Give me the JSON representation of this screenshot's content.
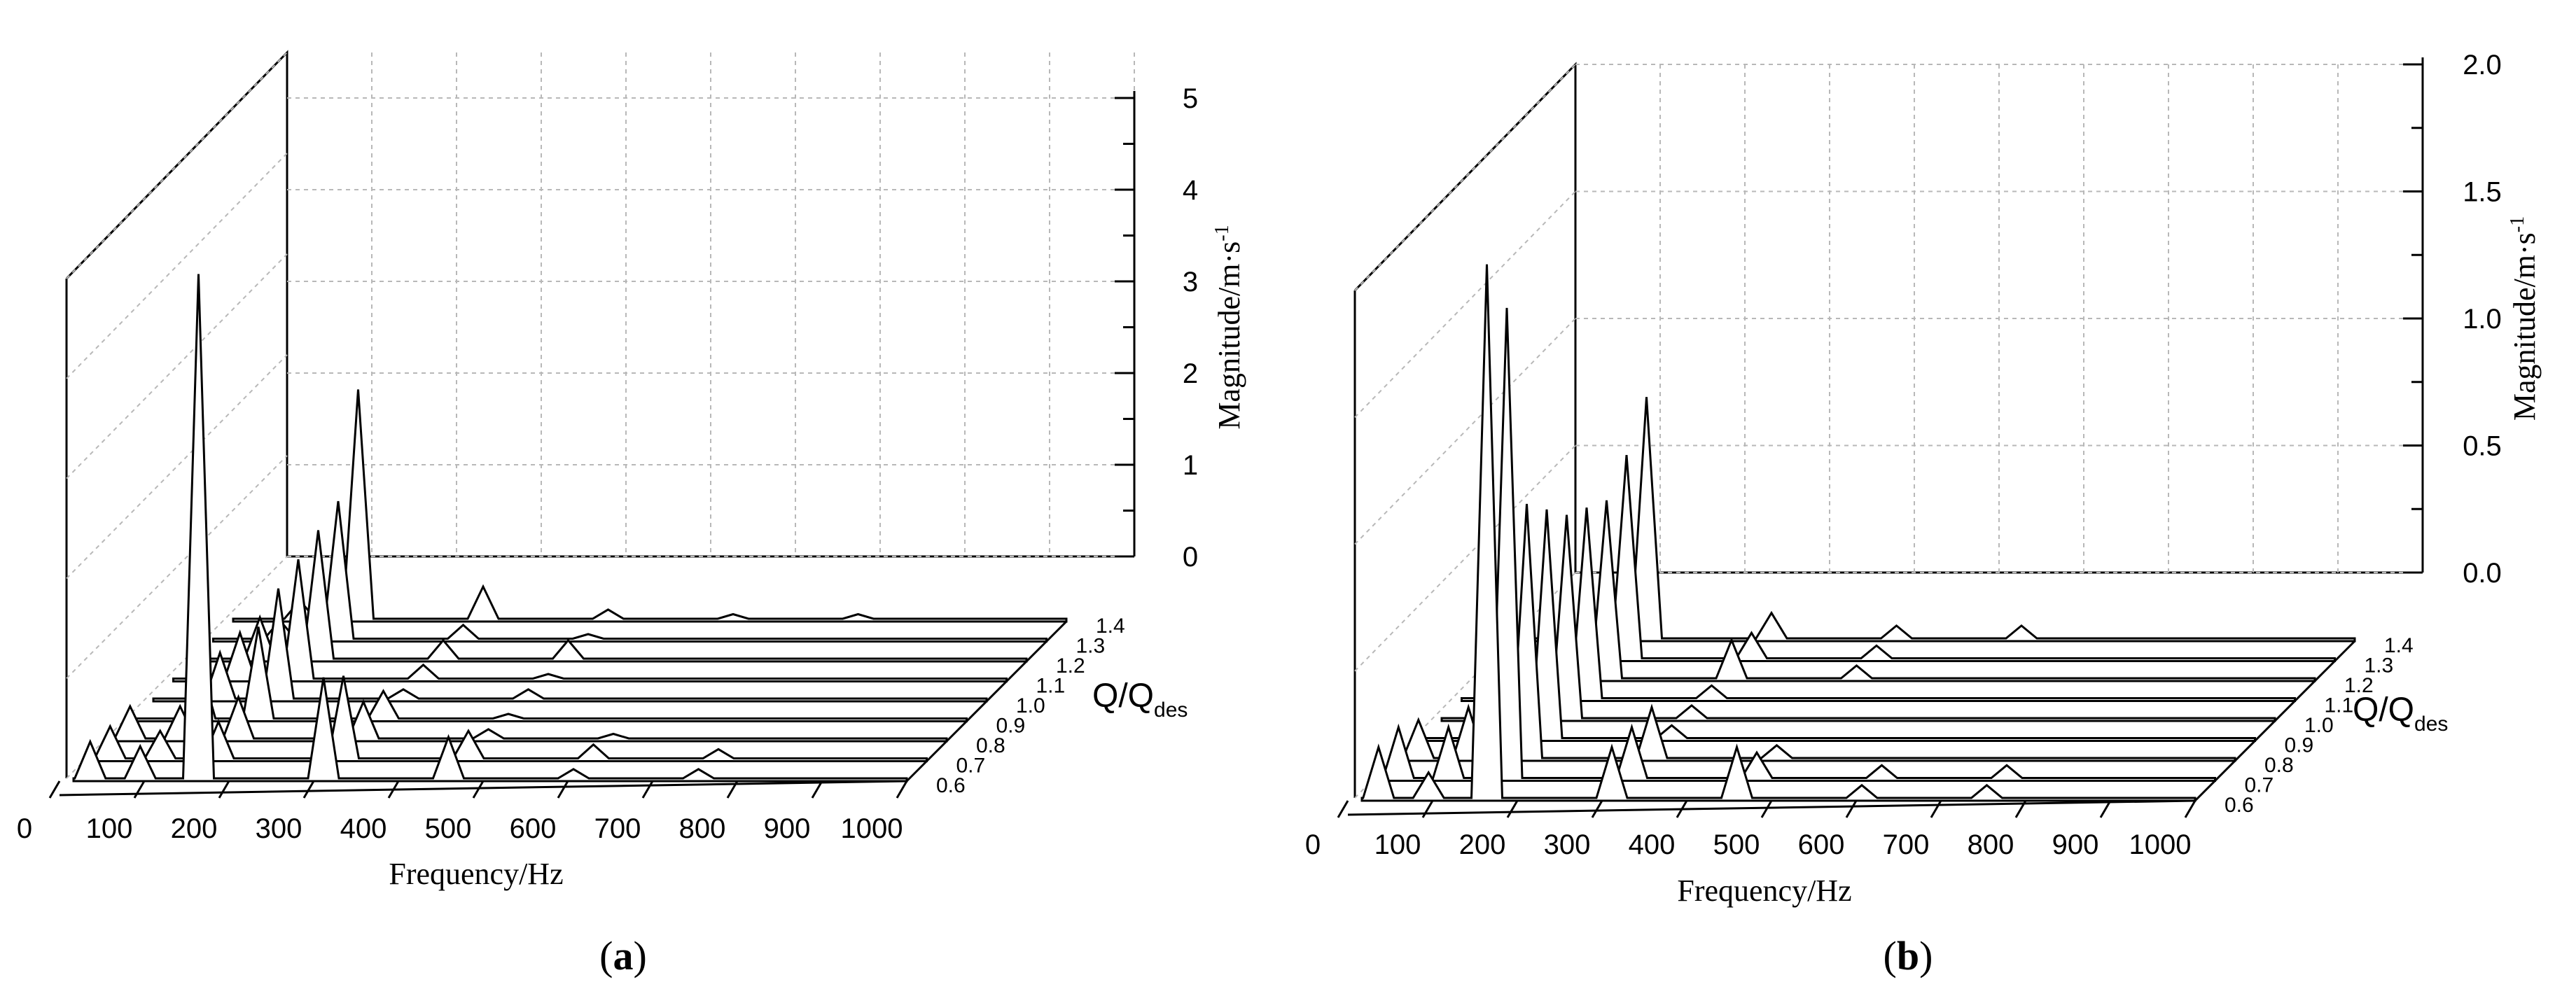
{
  "figure": {
    "panels": [
      {
        "id": "a",
        "label_open": "(",
        "label_letter": "a",
        "label_close": ")"
      },
      {
        "id": "b",
        "label_open": "(",
        "label_letter": "b",
        "label_close": ")"
      }
    ]
  },
  "chart_data": [
    {
      "type": "3d-waterfall-line",
      "panel": "a",
      "xlabel": "Frequency/Hz",
      "ylabel": "Q/Q",
      "ylabel_sub": "des",
      "zlabel": "Magnitude/m·s",
      "zlabel_sup": "-1",
      "x_ticks": [
        0,
        100,
        200,
        300,
        400,
        500,
        600,
        700,
        800,
        900,
        1000
      ],
      "z_ticks": [
        "0",
        "1",
        "2",
        "3",
        "4",
        "5"
      ],
      "xlim": [
        0,
        1000
      ],
      "zlim": [
        0,
        5
      ],
      "series": [
        {
          "name": "0.6",
          "peaks": [
            [
              20,
              0.4
            ],
            [
              80,
              0.35
            ],
            [
              150,
              5.5
            ],
            [
              300,
              1.1
            ],
            [
              450,
              0.45
            ],
            [
              600,
              0.1
            ],
            [
              750,
              0.1
            ]
          ]
        },
        {
          "name": "0.7",
          "peaks": [
            [
              20,
              0.35
            ],
            [
              80,
              0.3
            ],
            [
              150,
              0.4
            ],
            [
              300,
              0.9
            ],
            [
              450,
              0.3
            ],
            [
              600,
              0.15
            ],
            [
              750,
              0.1
            ]
          ]
        },
        {
          "name": "0.8",
          "peaks": [
            [
              20,
              0.35
            ],
            [
              80,
              0.35
            ],
            [
              150,
              0.45
            ],
            [
              300,
              0.4
            ],
            [
              450,
              0.1
            ],
            [
              600,
              0.05
            ]
          ]
        },
        {
          "name": "0.9",
          "peaks": [
            [
              80,
              0.6
            ],
            [
              150,
              1.0
            ],
            [
              300,
              0.3
            ],
            [
              450,
              0.05
            ]
          ]
        },
        {
          "name": "1.0",
          "peaks": [
            [
              80,
              0.5
            ],
            [
              150,
              1.2
            ],
            [
              300,
              0.1
            ],
            [
              450,
              0.1
            ]
          ]
        },
        {
          "name": "1.1",
          "peaks": [
            [
              80,
              0.5
            ],
            [
              150,
              1.3
            ],
            [
              300,
              0.15
            ],
            [
              450,
              0.05
            ]
          ]
        },
        {
          "name": "1.2",
          "peaks": [
            [
              80,
              0.45
            ],
            [
              150,
              1.4
            ],
            [
              300,
              0.2
            ],
            [
              450,
              0.2
            ]
          ]
        },
        {
          "name": "1.3",
          "peaks": [
            [
              80,
              0.2
            ],
            [
              150,
              1.5
            ],
            [
              300,
              0.15
            ],
            [
              450,
              0.05
            ]
          ]
        },
        {
          "name": "1.4",
          "peaks": [
            [
              80,
              0.2
            ],
            [
              150,
              2.5
            ],
            [
              300,
              0.35
            ],
            [
              450,
              0.1
            ],
            [
              600,
              0.05
            ],
            [
              750,
              0.05
            ]
          ]
        }
      ]
    },
    {
      "type": "3d-waterfall-line",
      "panel": "b",
      "xlabel": "Frequency/Hz",
      "ylabel": "Q/Q",
      "ylabel_sub": "des",
      "zlabel": "Magnitude/m·s",
      "zlabel_sup": "-1",
      "x_ticks": [
        0,
        100,
        200,
        300,
        400,
        500,
        600,
        700,
        800,
        900,
        1000
      ],
      "z_ticks": [
        "0.0",
        "0.5",
        "1.0",
        "1.5",
        "2.0"
      ],
      "xlim": [
        0,
        1000
      ],
      "zlim": [
        0,
        2
      ],
      "series": [
        {
          "name": "0.6",
          "peaks": [
            [
              20,
              0.2
            ],
            [
              80,
              0.1
            ],
            [
              150,
              2.1
            ],
            [
              300,
              0.2
            ],
            [
              450,
              0.2
            ],
            [
              600,
              0.05
            ],
            [
              750,
              0.05
            ]
          ]
        },
        {
          "name": "0.7",
          "peaks": [
            [
              20,
              0.2
            ],
            [
              80,
              0.2
            ],
            [
              150,
              1.85
            ],
            [
              300,
              0.2
            ],
            [
              450,
              0.1
            ],
            [
              600,
              0.05
            ],
            [
              750,
              0.05
            ]
          ]
        },
        {
          "name": "0.8",
          "peaks": [
            [
              20,
              0.15
            ],
            [
              80,
              0.2
            ],
            [
              150,
              1.0
            ],
            [
              300,
              0.2
            ],
            [
              450,
              0.05
            ]
          ]
        },
        {
          "name": "0.9",
          "peaks": [
            [
              80,
              0.3
            ],
            [
              150,
              0.9
            ],
            [
              300,
              0.05
            ]
          ]
        },
        {
          "name": "1.0",
          "peaks": [
            [
              80,
              0.3
            ],
            [
              150,
              0.8
            ],
            [
              300,
              0.05
            ]
          ]
        },
        {
          "name": "1.1",
          "peaks": [
            [
              80,
              0.2
            ],
            [
              150,
              0.75
            ],
            [
              300,
              0.05
            ]
          ]
        },
        {
          "name": "1.2",
          "peaks": [
            [
              80,
              0.2
            ],
            [
              150,
              0.7
            ],
            [
              300,
              0.15
            ],
            [
              450,
              0.05
            ]
          ]
        },
        {
          "name": "1.3",
          "peaks": [
            [
              80,
              0.15
            ],
            [
              150,
              0.8
            ],
            [
              300,
              0.1
            ],
            [
              450,
              0.05
            ]
          ]
        },
        {
          "name": "1.4",
          "peaks": [
            [
              80,
              0.1
            ],
            [
              150,
              0.95
            ],
            [
              300,
              0.1
            ],
            [
              450,
              0.05
            ],
            [
              600,
              0.05
            ]
          ]
        }
      ]
    }
  ]
}
